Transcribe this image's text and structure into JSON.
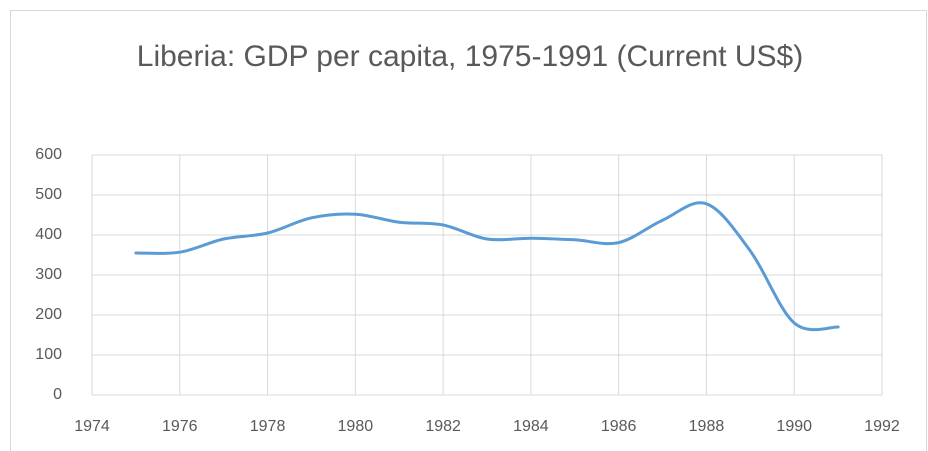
{
  "chart_data": {
    "type": "line",
    "title": "Liberia: GDP per capita, 1975-1991 (Current US$)",
    "x": [
      1975,
      1976,
      1977,
      1978,
      1979,
      1980,
      1981,
      1982,
      1983,
      1984,
      1985,
      1986,
      1987,
      1988,
      1989,
      1990,
      1991
    ],
    "series": [
      {
        "name": "GDP per capita",
        "color": "#5b9bd5",
        "values": [
          355,
          357,
          390,
          405,
          443,
          452,
          432,
          425,
          390,
          392,
          388,
          381,
          437,
          478,
          360,
          180,
          170
        ]
      }
    ],
    "xlim": [
      1974,
      1992
    ],
    "xticks": [
      1974,
      1976,
      1978,
      1980,
      1982,
      1984,
      1986,
      1988,
      1990,
      1992
    ],
    "ylim": [
      0,
      600
    ],
    "yticks": [
      0,
      100,
      200,
      300,
      400,
      500,
      600
    ],
    "grid": true,
    "smooth": true
  }
}
